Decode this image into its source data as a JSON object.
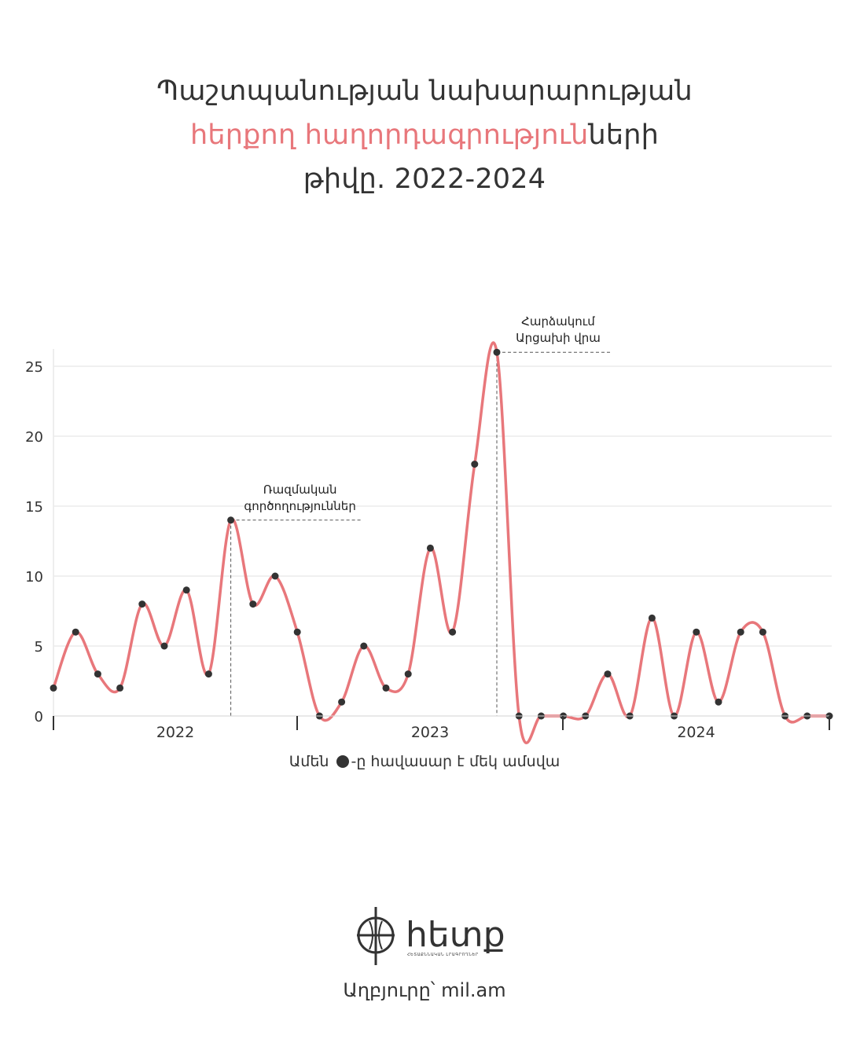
{
  "title": {
    "line1": "Պաշտպանության նախարարության",
    "line2_highlight": "հերքող հաղորդագրություն",
    "line2_rest": "ների",
    "line3": "թիվը. 2022-2024"
  },
  "colors": {
    "accent": "#e8777b",
    "text": "#333333",
    "grid": "#ebebeb"
  },
  "chart_data": {
    "type": "line",
    "title": "Պաշտպանության նախարարության հերքող հաղորդագրությունների թիվը. 2022-2024",
    "xlabel": "",
    "ylabel": "",
    "ylim": [
      0,
      26
    ],
    "yticks": [
      0,
      5,
      10,
      15,
      20,
      25
    ],
    "grid": true,
    "year_labels": [
      "2022",
      "2023",
      "2024"
    ],
    "series": [
      {
        "values": [
          2,
          6,
          3,
          2,
          8,
          5,
          9,
          3,
          14,
          8,
          10,
          6,
          0,
          1,
          5,
          2,
          3,
          12,
          6,
          18,
          26,
          0,
          0,
          0,
          0,
          3,
          0,
          7,
          0,
          6,
          1,
          6,
          6,
          0,
          0,
          0
        ]
      }
    ],
    "annotations": [
      {
        "month_index": 8,
        "value": 14,
        "lines": [
          "Ռազմական",
          "գործողություններ"
        ]
      },
      {
        "month_index": 20,
        "value": 26,
        "lines": [
          "Հարձակում",
          "Արցախի վրա"
        ]
      }
    ]
  },
  "legend": {
    "prefix": "Ամեն",
    "suffix": "-ը հավասար է մեկ ամսվա"
  },
  "logo": {
    "text": "հետք",
    "subtitle": "ՀԵՏԱՔՆՆԱԿԱՆ ԼՐԱԳՐՈՂՆԵՐ"
  },
  "source": "Աղբյուրը՝ mil.am"
}
